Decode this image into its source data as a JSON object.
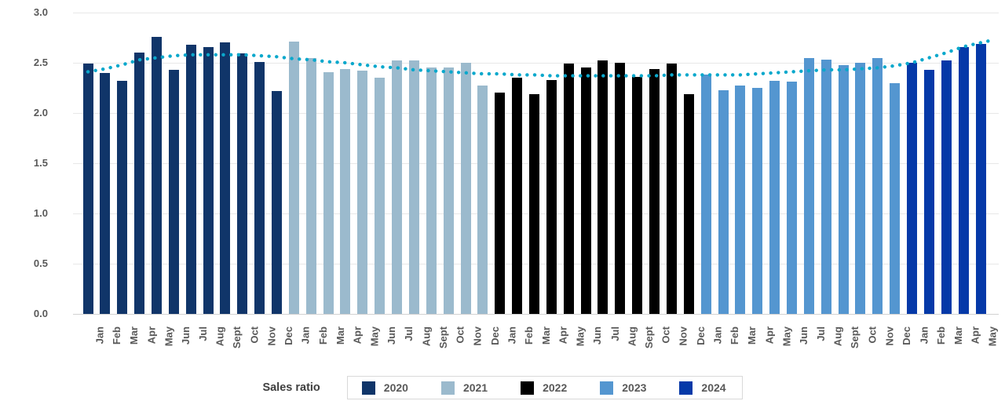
{
  "chart_data": {
    "type": "bar",
    "title": "",
    "xlabel": "",
    "ylabel": "",
    "ylim": [
      0.0,
      3.0
    ],
    "ytick_step": 0.5,
    "yticks": [
      "3.0",
      "2.5",
      "2.0",
      "1.5",
      "1.0",
      "0.5",
      "0.0"
    ],
    "grid": true,
    "legend_position": "bottom-center",
    "legend_title": "Sales ratio",
    "months": [
      "Jan",
      "Feb",
      "Mar",
      "Apr",
      "May",
      "Jun",
      "Jul",
      "Aug",
      "Sept",
      "Oct",
      "Nov",
      "Dec"
    ],
    "series": [
      {
        "name": "2020",
        "color": "#103569",
        "values": [
          2.49,
          2.4,
          2.32,
          2.6,
          2.76,
          2.43,
          2.68,
          2.66,
          2.7,
          2.59,
          2.51,
          2.22
        ]
      },
      {
        "name": "2021",
        "color": "#9BBACD",
        "values": [
          2.71,
          2.55,
          2.41,
          2.44,
          2.42,
          2.35,
          2.52,
          2.52,
          2.45,
          2.45,
          2.5,
          2.27
        ]
      },
      {
        "name": "2022",
        "color": "#000000",
        "values": [
          2.2,
          2.35,
          2.19,
          2.33,
          2.49,
          2.45,
          2.52,
          2.5,
          2.36,
          2.44,
          2.49,
          2.19
        ]
      },
      {
        "name": "2023",
        "color": "#5496D0",
        "values": [
          2.38,
          2.23,
          2.27,
          2.25,
          2.32,
          2.31,
          2.55,
          2.53,
          2.48,
          2.5,
          2.55,
          2.3
        ]
      },
      {
        "name": "2024",
        "color": "#0539A8",
        "values": [
          2.5,
          2.43,
          2.52,
          2.66,
          2.69
        ]
      }
    ],
    "trend": {
      "name": "trend-line",
      "color": "#0AA8CC",
      "style": "dotted",
      "values": [
        2.41,
        2.44,
        2.48,
        2.53,
        2.55,
        2.57,
        2.58,
        2.58,
        2.58,
        2.58,
        2.57,
        2.56,
        2.54,
        2.53,
        2.51,
        2.5,
        2.48,
        2.46,
        2.45,
        2.43,
        2.42,
        2.41,
        2.4,
        2.39,
        2.39,
        2.38,
        2.38,
        2.37,
        2.37,
        2.37,
        2.37,
        2.37,
        2.37,
        2.37,
        2.38,
        2.38,
        2.38,
        2.38,
        2.38,
        2.39,
        2.4,
        2.41,
        2.42,
        2.43,
        2.43,
        2.44,
        2.45,
        2.47,
        2.5,
        2.55,
        2.6,
        2.66,
        2.7,
        2.72
      ]
    }
  }
}
